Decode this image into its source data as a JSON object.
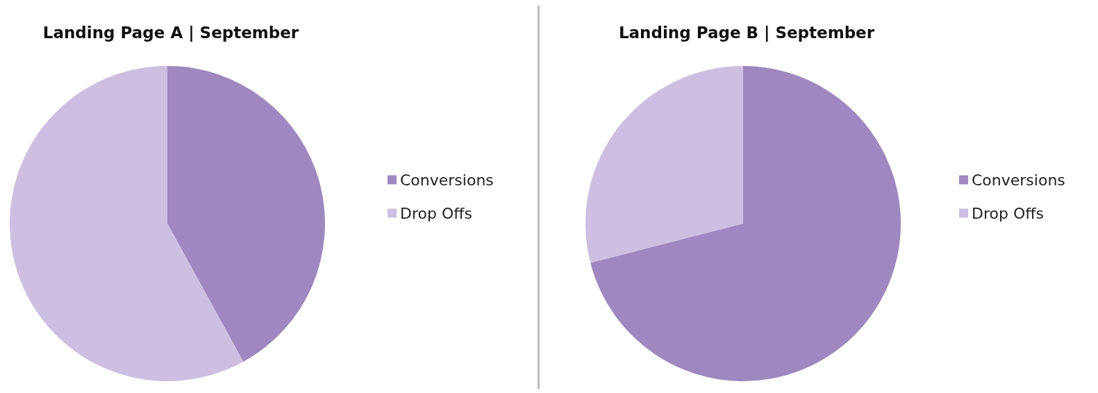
{
  "chart_data": [
    {
      "type": "pie",
      "title": "Landing Page A | September",
      "categories": [
        "Conversions",
        "Drop Offs"
      ],
      "values": [
        42,
        58
      ],
      "colors": [
        "#9f87bf",
        "#cdbfe2"
      ],
      "legend": "right"
    },
    {
      "type": "pie",
      "title": "Landing Page B | September",
      "categories": [
        "Conversions",
        "Drop Offs"
      ],
      "values": [
        71,
        29
      ],
      "colors": [
        "#9f87bf",
        "#cdbfe2"
      ],
      "legend": "right"
    }
  ]
}
